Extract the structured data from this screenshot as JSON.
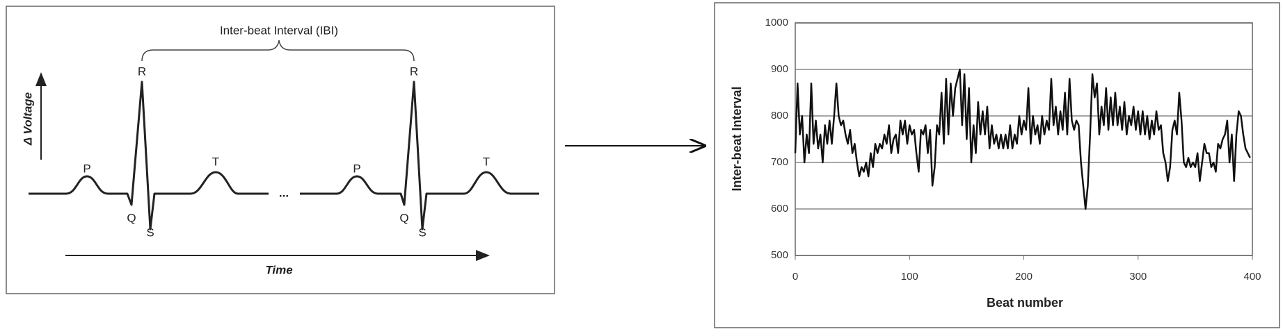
{
  "diagram": {
    "title": "Inter-beat Interval (IBI)",
    "y_label": "Δ Voltage",
    "x_label": "Time",
    "ellipsis": "...",
    "beats": [
      {
        "p": "P",
        "q": "Q",
        "r": "R",
        "s": "S",
        "t": "T"
      },
      {
        "p": "P",
        "q": "Q",
        "r": "R",
        "s": "S",
        "t": "T"
      }
    ]
  },
  "chart_data": {
    "type": "line",
    "x_label": "Beat number",
    "y_label": "Inter-beat Interval",
    "xlim": [
      0,
      400
    ],
    "xticks": [
      0,
      100,
      200,
      300,
      400
    ],
    "ylim": [
      500,
      1000
    ],
    "yticks": [
      500,
      600,
      700,
      800,
      900,
      1000
    ],
    "grid": true,
    "series": [
      {
        "name": "IBI",
        "color": "#111111",
        "x": [
          0,
          2,
          4,
          6,
          8,
          10,
          12,
          14,
          16,
          18,
          20,
          22,
          24,
          26,
          28,
          30,
          32,
          34,
          36,
          38,
          40,
          42,
          44,
          46,
          48,
          50,
          52,
          54,
          56,
          58,
          60,
          62,
          64,
          66,
          68,
          70,
          72,
          74,
          76,
          78,
          80,
          82,
          84,
          86,
          88,
          90,
          92,
          94,
          96,
          98,
          100,
          102,
          104,
          106,
          108,
          110,
          112,
          114,
          116,
          118,
          120,
          122,
          124,
          126,
          128,
          130,
          132,
          134,
          136,
          138,
          140,
          142,
          144,
          146,
          148,
          150,
          152,
          154,
          156,
          158,
          160,
          162,
          164,
          166,
          168,
          170,
          172,
          174,
          176,
          178,
          180,
          182,
          184,
          186,
          188,
          190,
          192,
          194,
          196,
          198,
          200,
          202,
          204,
          206,
          208,
          210,
          212,
          214,
          216,
          218,
          220,
          222,
          224,
          226,
          228,
          230,
          232,
          234,
          236,
          238,
          240,
          242,
          244,
          246,
          248,
          250,
          252,
          254,
          256,
          258,
          260,
          262,
          264,
          266,
          268,
          270,
          272,
          274,
          276,
          278,
          280,
          282,
          284,
          286,
          288,
          290,
          292,
          294,
          296,
          298,
          300,
          302,
          304,
          306,
          308,
          310,
          312,
          314,
          316,
          318,
          320,
          322,
          324,
          326,
          328,
          330,
          332,
          334,
          336,
          338,
          340,
          342,
          344,
          346,
          348,
          350,
          352,
          354,
          356,
          358,
          360,
          362,
          364,
          366,
          368,
          370,
          372,
          374,
          376,
          378,
          380,
          382,
          384,
          386,
          388,
          390,
          392,
          394,
          396,
          398
        ],
        "values": [
          720,
          870,
          760,
          800,
          700,
          760,
          720,
          870,
          740,
          790,
          730,
          760,
          700,
          780,
          740,
          790,
          740,
          800,
          870,
          800,
          780,
          790,
          760,
          740,
          770,
          720,
          740,
          700,
          670,
          690,
          680,
          700,
          670,
          720,
          690,
          740,
          720,
          740,
          730,
          760,
          740,
          780,
          720,
          750,
          760,
          720,
          790,
          760,
          790,
          740,
          780,
          760,
          770,
          720,
          680,
          770,
          760,
          780,
          720,
          770,
          650,
          690,
          780,
          760,
          850,
          740,
          880,
          760,
          870,
          800,
          860,
          880,
          900,
          780,
          890,
          750,
          860,
          700,
          780,
          720,
          830,
          760,
          810,
          760,
          820,
          730,
          780,
          740,
          760,
          730,
          760,
          730,
          760,
          730,
          780,
          730,
          760,
          740,
          800,
          760,
          790,
          770,
          860,
          740,
          800,
          760,
          780,
          740,
          800,
          760,
          790,
          770,
          880,
          780,
          820,
          760,
          810,
          770,
          850,
          760,
          880,
          790,
          770,
          790,
          780,
          700,
          650,
          600,
          650,
          760,
          890,
          840,
          870,
          760,
          820,
          780,
          860,
          770,
          840,
          780,
          850,
          780,
          820,
          770,
          830,
          760,
          800,
          780,
          820,
          770,
          810,
          760,
          810,
          760,
          800,
          750,
          790,
          760,
          810,
          770,
          780,
          720,
          700,
          660,
          690,
          770,
          790,
          760,
          850,
          790,
          700,
          690,
          710,
          690,
          700,
          690,
          720,
          660,
          700,
          740,
          720,
          720,
          690,
          700,
          680,
          740,
          730,
          750,
          760,
          790,
          700,
          760,
          660,
          760,
          810,
          800,
          760,
          730,
          720,
          710
        ]
      }
    ]
  }
}
